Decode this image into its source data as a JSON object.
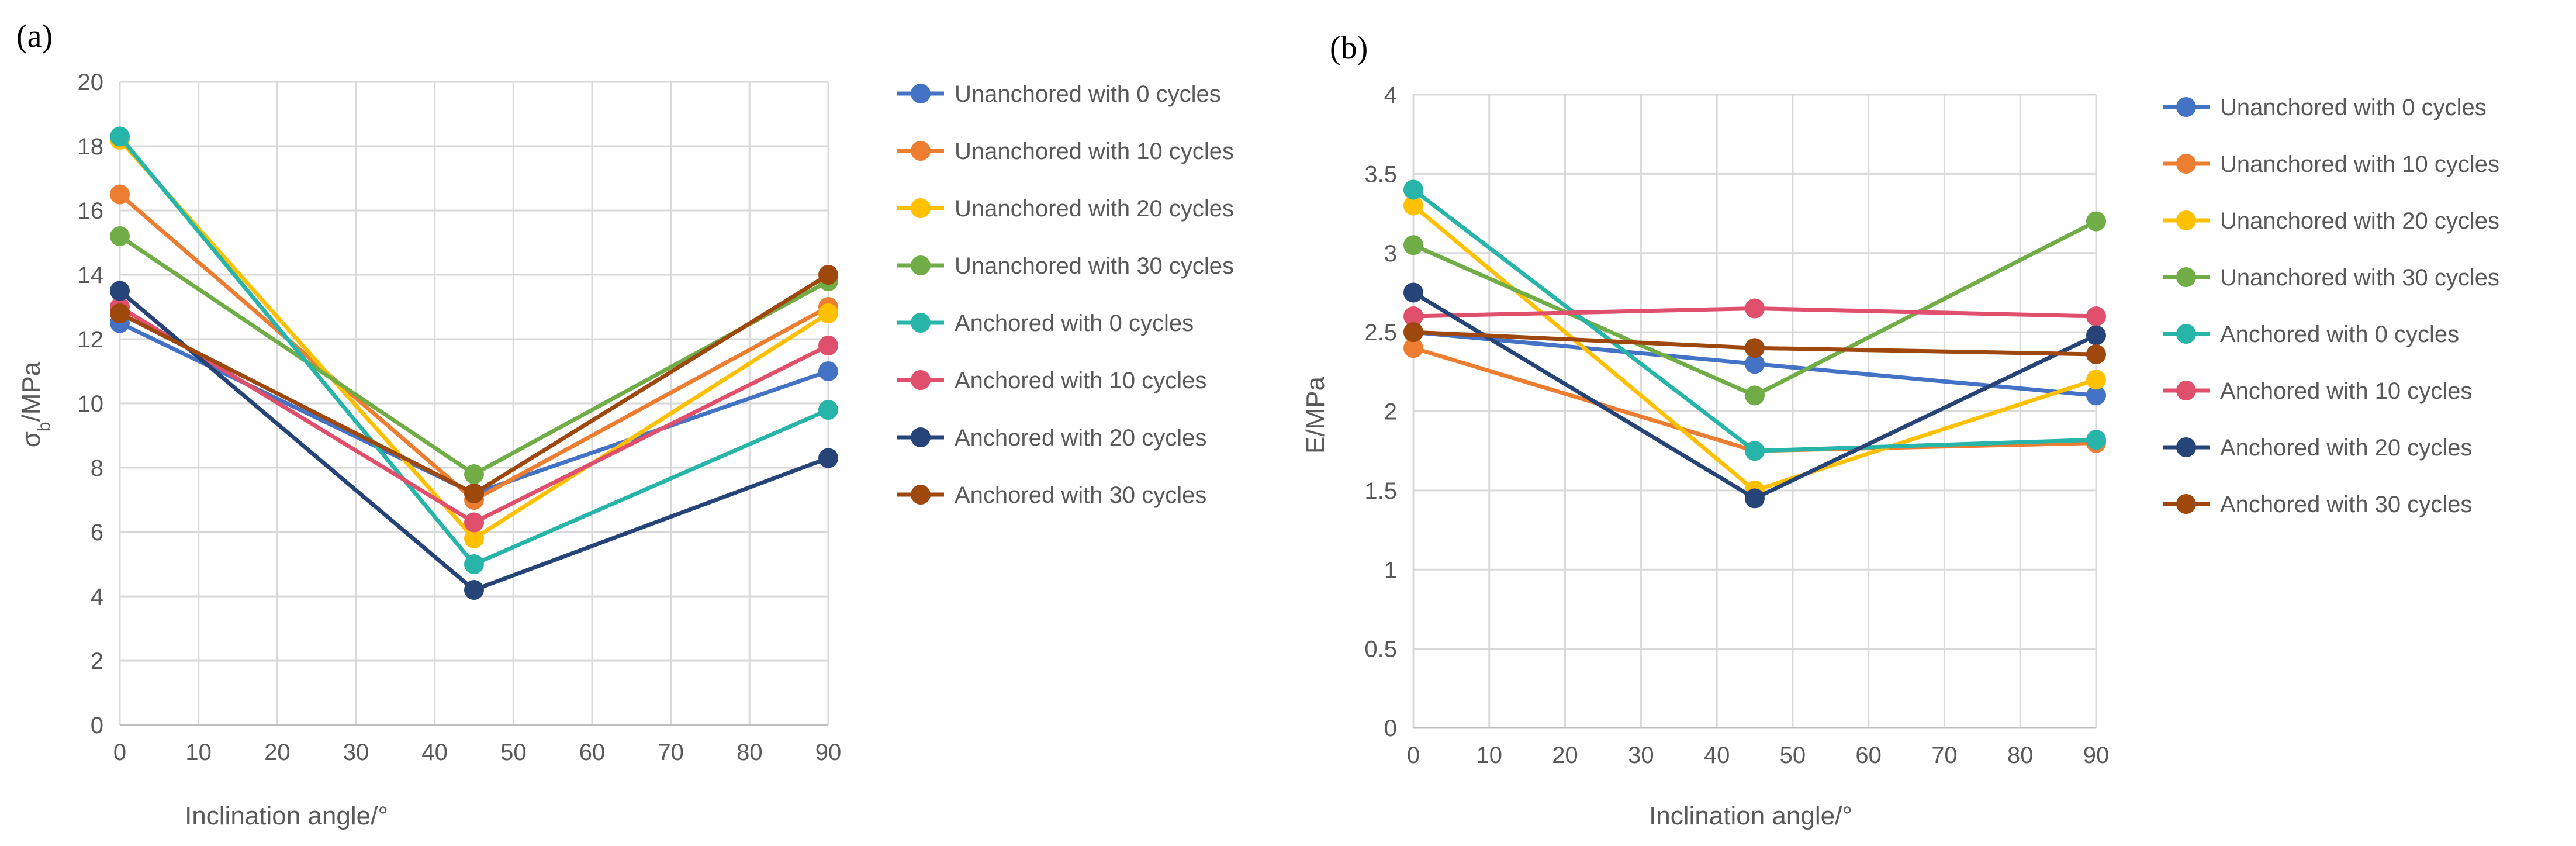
{
  "chart_data": [
    {
      "panel_label": "(a)",
      "type": "line",
      "xlabel": "Inclination angle/°",
      "ylabel_main": "σ",
      "ylabel_sub": "b",
      "ylabel_rest": "/MPa",
      "xlim": [
        0,
        90
      ],
      "ylim": [
        0,
        20
      ],
      "x_ticks": [
        "0",
        "10",
        "20",
        "30",
        "40",
        "50",
        "60",
        "70",
        "80",
        "90"
      ],
      "y_ticks": [
        "0",
        "2",
        "4",
        "6",
        "8",
        "10",
        "12",
        "14",
        "16",
        "18",
        "20"
      ],
      "grid": true,
      "legend_position": "right",
      "x": [
        0,
        45,
        90
      ],
      "series": [
        {
          "name": "Unanchored with 0 cycles",
          "color": "#4472C4",
          "values": [
            12.5,
            7.2,
            11.0
          ]
        },
        {
          "name": "Unanchored with 10 cycles",
          "color": "#ED7D31",
          "values": [
            16.5,
            7.0,
            13.0
          ]
        },
        {
          "name": "Unanchored with 20 cycles",
          "color": "#FFC000",
          "values": [
            18.2,
            5.8,
            12.8
          ]
        },
        {
          "name": "Unanchored with 30 cycles",
          "color": "#70AD47",
          "values": [
            15.2,
            7.8,
            13.8
          ]
        },
        {
          "name": "Anchored with 0 cycles",
          "color": "#26B5A8",
          "values": [
            18.3,
            5.0,
            9.8
          ]
        },
        {
          "name": "Anchored with 10 cycles",
          "color": "#E0506C",
          "values": [
            13.0,
            6.3,
            11.8
          ]
        },
        {
          "name": "Anchored with 20 cycles",
          "color": "#264478",
          "values": [
            13.5,
            4.2,
            8.3
          ]
        },
        {
          "name": "Anchored with 30 cycles",
          "color": "#9E480E",
          "values": [
            12.8,
            7.2,
            14.0
          ]
        }
      ]
    },
    {
      "panel_label": "(b)",
      "type": "line",
      "xlabel": "Inclination angle/°",
      "ylabel_main": "E/MPa",
      "ylabel_sub": "",
      "ylabel_rest": "",
      "xlim": [
        0,
        90
      ],
      "ylim": [
        0,
        4
      ],
      "x_ticks": [
        "0",
        "10",
        "20",
        "30",
        "40",
        "50",
        "60",
        "70",
        "80",
        "90"
      ],
      "y_ticks": [
        "0",
        "0.5",
        "1",
        "1.5",
        "2",
        "2.5",
        "3",
        "3.5",
        "4"
      ],
      "grid": true,
      "legend_position": "right",
      "x": [
        0,
        45,
        90
      ],
      "series": [
        {
          "name": "Unanchored with 0 cycles",
          "color": "#4472C4",
          "values": [
            2.5,
            2.3,
            2.1
          ]
        },
        {
          "name": "Unanchored with 10 cycles",
          "color": "#ED7D31",
          "values": [
            2.4,
            1.75,
            1.8
          ]
        },
        {
          "name": "Unanchored with 20 cycles",
          "color": "#FFC000",
          "values": [
            3.3,
            1.5,
            2.2
          ]
        },
        {
          "name": "Unanchored with 30 cycles",
          "color": "#70AD47",
          "values": [
            3.05,
            2.1,
            3.2
          ]
        },
        {
          "name": "Anchored with 0 cycles",
          "color": "#26B5A8",
          "values": [
            3.4,
            1.75,
            1.82
          ]
        },
        {
          "name": "Anchored with 10 cycles",
          "color": "#E0506C",
          "values": [
            2.6,
            2.65,
            2.6
          ]
        },
        {
          "name": "Anchored with 20 cycles",
          "color": "#264478",
          "values": [
            2.75,
            1.45,
            2.48
          ]
        },
        {
          "name": "Anchored with 30 cycles",
          "color": "#9E480E",
          "values": [
            2.5,
            2.4,
            2.36
          ]
        }
      ]
    }
  ],
  "colors": {
    "grid": "#D9D9D9",
    "axis": "#BFBFBF",
    "text": "#595959"
  }
}
